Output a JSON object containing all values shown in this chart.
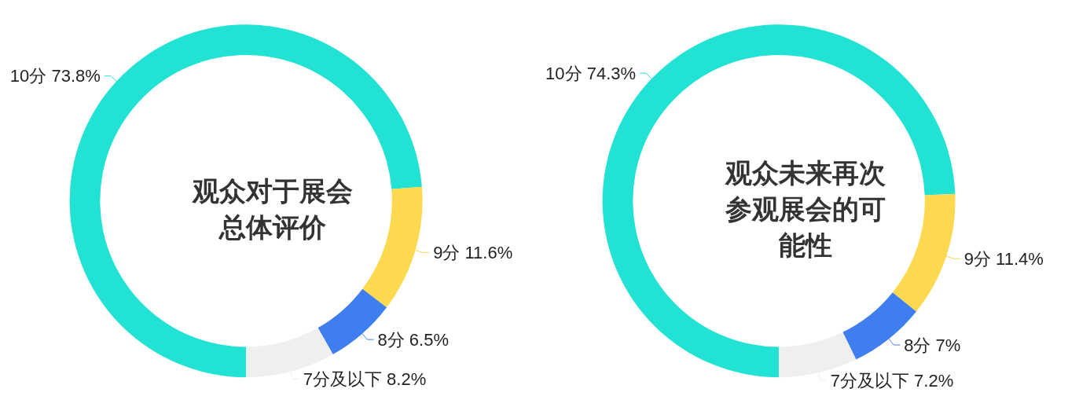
{
  "chart_data": [
    {
      "type": "donut",
      "title": "观众对于展会总体评价",
      "categories": [
        "10分",
        "9分",
        "8分",
        "7分及以下"
      ],
      "values": [
        73.8,
        11.6,
        6.5,
        8.2
      ],
      "value_labels": [
        "73.8%",
        "11.6%",
        "6.5%",
        "8.2%"
      ],
      "colors": [
        "#22e2d4",
        "#fcd94e",
        "#3f7eef",
        "#efefef"
      ]
    },
    {
      "type": "donut",
      "title": "观众未来再次参观展会的可能性",
      "categories": [
        "10分",
        "9分",
        "8分",
        "7分及以下"
      ],
      "values": [
        74.3,
        11.4,
        7,
        7.2
      ],
      "value_labels": [
        "74.3%",
        "11.4%",
        "7%",
        "7.2%"
      ],
      "colors": [
        "#22e2d4",
        "#fcd94e",
        "#3f7eef",
        "#efefef"
      ]
    }
  ]
}
